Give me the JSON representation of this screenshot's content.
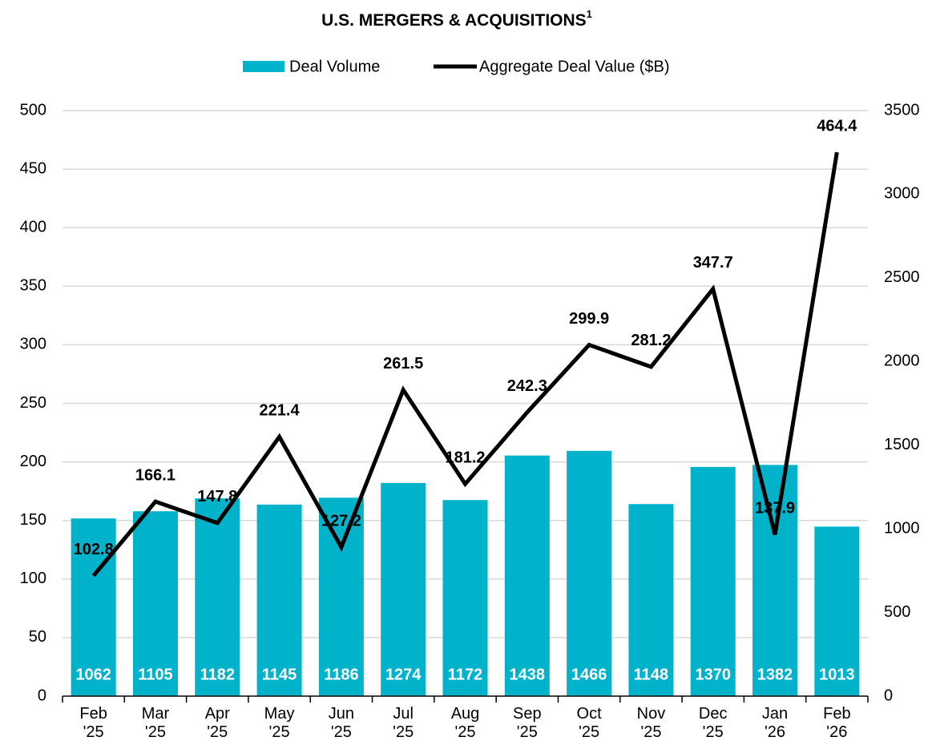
{
  "chart_data": {
    "type": "bar_line",
    "title": "U.S. MERGERS & ACQUISITIONS",
    "title_superscript": "1",
    "categories": [
      "Feb\n'25",
      "Mar\n'25",
      "Apr\n'25",
      "May\n'25",
      "Jun\n'25",
      "Jul\n'25",
      "Aug\n'25",
      "Sep\n'25",
      "Oct\n'25",
      "Nov\n'25",
      "Dec\n'25",
      "Jan\n'26",
      "Feb\n'26"
    ],
    "series": [
      {
        "name": "Deal Volume",
        "type": "bar",
        "axis": "y2",
        "color": "#00b3cb",
        "values": [
          1062,
          1105,
          1182,
          1145,
          1186,
          1274,
          1172,
          1438,
          1466,
          1148,
          1370,
          1382,
          1013
        ]
      },
      {
        "name": "Aggregate Deal Value ($B)",
        "type": "line",
        "axis": "y",
        "color": "#000000",
        "values": [
          102.8,
          166.1,
          147.8,
          221.4,
          127.2,
          261.5,
          181.2,
          242.3,
          299.9,
          281.2,
          347.7,
          137.9,
          464.4
        ]
      }
    ],
    "ylim": [
      0,
      500
    ],
    "yticks": [
      0,
      50,
      100,
      150,
      200,
      250,
      300,
      350,
      400,
      450,
      500
    ],
    "y2lim": [
      0,
      3500
    ],
    "y2ticks": [
      0,
      500,
      1000,
      1500,
      2000,
      2500,
      3000,
      3500
    ],
    "grid": true,
    "legend": "top"
  }
}
